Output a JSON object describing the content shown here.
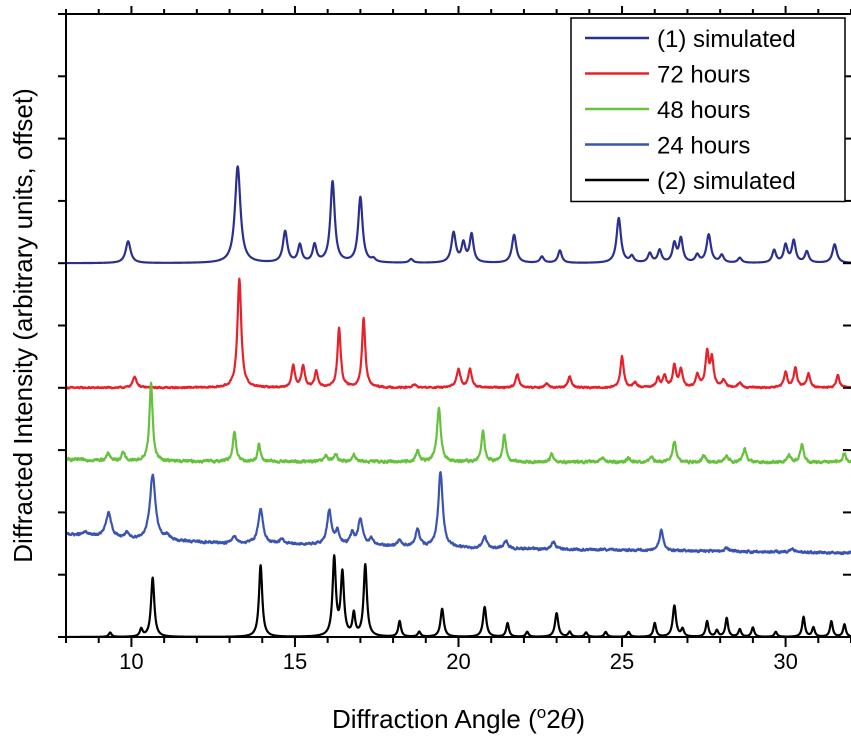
{
  "chart_data": {
    "type": "line",
    "xlabel": "Diffraction Angle (°2θ)",
    "xlabel_parts": {
      "prefix": "Diffraction Angle (",
      "superscript": "o",
      "middle": "2",
      "theta": "θ",
      "suffix": ")"
    },
    "ylabel": "Diffracted Intensity (arbitrary units, offset)",
    "xlim": [
      8,
      32
    ],
    "ylim": [
      0,
      10
    ],
    "x_ticks": [
      10,
      15,
      20,
      25,
      30
    ],
    "y_ticks": [
      0,
      1,
      2,
      3,
      4,
      5,
      6,
      7,
      8,
      9,
      10
    ],
    "show_y_tick_labels": false,
    "grid": false,
    "legend_position": "top-right",
    "series": [
      {
        "name": "(1) simulated",
        "color": "#2b2f8f",
        "offset": 6.0,
        "noise": 0.0,
        "background": [
          [
            8,
            0
          ],
          [
            32,
            0
          ]
        ],
        "peaks": [
          [
            9.9,
            0.35,
            0.09
          ],
          [
            13.25,
            1.55,
            0.1
          ],
          [
            14.7,
            0.5,
            0.08
          ],
          [
            15.15,
            0.28,
            0.07
          ],
          [
            15.6,
            0.28,
            0.07
          ],
          [
            16.15,
            1.3,
            0.08
          ],
          [
            17.0,
            1.05,
            0.08
          ],
          [
            17.4,
            0.05,
            0.07
          ],
          [
            18.55,
            0.06,
            0.07
          ],
          [
            19.85,
            0.48,
            0.08
          ],
          [
            20.15,
            0.3,
            0.07
          ],
          [
            20.4,
            0.45,
            0.07
          ],
          [
            21.7,
            0.45,
            0.08
          ],
          [
            22.55,
            0.1,
            0.07
          ],
          [
            23.1,
            0.2,
            0.07
          ],
          [
            24.9,
            0.72,
            0.08
          ],
          [
            25.3,
            0.1,
            0.07
          ],
          [
            25.85,
            0.15,
            0.07
          ],
          [
            26.15,
            0.2,
            0.07
          ],
          [
            26.6,
            0.3,
            0.07
          ],
          [
            26.8,
            0.38,
            0.07
          ],
          [
            27.3,
            0.12,
            0.07
          ],
          [
            27.65,
            0.45,
            0.08
          ],
          [
            28.05,
            0.12,
            0.07
          ],
          [
            28.6,
            0.08,
            0.07
          ],
          [
            29.65,
            0.2,
            0.07
          ],
          [
            30.0,
            0.28,
            0.07
          ],
          [
            30.25,
            0.35,
            0.07
          ],
          [
            30.65,
            0.18,
            0.07
          ],
          [
            31.5,
            0.3,
            0.08
          ]
        ]
      },
      {
        "name": "72 hours",
        "color": "#e8202a",
        "offset": 4.0,
        "noise": 0.02,
        "background": [
          [
            8,
            0
          ],
          [
            32,
            0
          ]
        ],
        "peaks": [
          [
            10.1,
            0.18,
            0.07
          ],
          [
            13.3,
            1.75,
            0.07
          ],
          [
            14.95,
            0.35,
            0.06
          ],
          [
            15.25,
            0.35,
            0.06
          ],
          [
            15.65,
            0.25,
            0.06
          ],
          [
            16.35,
            0.95,
            0.06
          ],
          [
            17.1,
            1.1,
            0.06
          ],
          [
            18.65,
            0.05,
            0.06
          ],
          [
            20.0,
            0.3,
            0.07
          ],
          [
            20.35,
            0.3,
            0.06
          ],
          [
            21.8,
            0.22,
            0.06
          ],
          [
            22.7,
            0.07,
            0.06
          ],
          [
            23.4,
            0.18,
            0.06
          ],
          [
            25.0,
            0.5,
            0.06
          ],
          [
            25.4,
            0.08,
            0.06
          ],
          [
            26.1,
            0.15,
            0.06
          ],
          [
            26.3,
            0.18,
            0.06
          ],
          [
            26.6,
            0.35,
            0.06
          ],
          [
            26.8,
            0.28,
            0.06
          ],
          [
            27.3,
            0.2,
            0.06
          ],
          [
            27.6,
            0.55,
            0.06
          ],
          [
            27.75,
            0.45,
            0.06
          ],
          [
            28.1,
            0.12,
            0.06
          ],
          [
            28.6,
            0.08,
            0.06
          ],
          [
            30.0,
            0.25,
            0.06
          ],
          [
            30.3,
            0.32,
            0.06
          ],
          [
            30.7,
            0.22,
            0.06
          ],
          [
            31.6,
            0.2,
            0.06
          ]
        ]
      },
      {
        "name": "48 hours",
        "color": "#66c23c",
        "offset": 2.8,
        "noise": 0.035,
        "background": [
          [
            8,
            0.05
          ],
          [
            10,
            0.02
          ],
          [
            32,
            0.0
          ]
        ],
        "peaks": [
          [
            9.3,
            0.12,
            0.06
          ],
          [
            9.75,
            0.15,
            0.06
          ],
          [
            10.6,
            1.25,
            0.06
          ],
          [
            13.15,
            0.48,
            0.06
          ],
          [
            13.9,
            0.28,
            0.05
          ],
          [
            15.95,
            0.1,
            0.06
          ],
          [
            16.25,
            0.12,
            0.06
          ],
          [
            16.8,
            0.12,
            0.06
          ],
          [
            18.75,
            0.18,
            0.06
          ],
          [
            19.4,
            0.85,
            0.07
          ],
          [
            20.75,
            0.48,
            0.06
          ],
          [
            21.4,
            0.42,
            0.06
          ],
          [
            22.85,
            0.12,
            0.06
          ],
          [
            24.4,
            0.08,
            0.06
          ],
          [
            25.2,
            0.07,
            0.06
          ],
          [
            25.9,
            0.08,
            0.06
          ],
          [
            26.6,
            0.35,
            0.06
          ],
          [
            27.5,
            0.12,
            0.06
          ],
          [
            28.2,
            0.12,
            0.06
          ],
          [
            28.75,
            0.22,
            0.06
          ],
          [
            30.1,
            0.12,
            0.06
          ],
          [
            30.5,
            0.3,
            0.06
          ],
          [
            31.8,
            0.15,
            0.06
          ]
        ]
      },
      {
        "name": "24 hours",
        "color": "#3a54b0",
        "offset": 1.35,
        "noise": 0.03,
        "background": [
          [
            8,
            0.3
          ],
          [
            10,
            0.22
          ],
          [
            13,
            0.15
          ],
          [
            17,
            0.12
          ],
          [
            21,
            0.07
          ],
          [
            32,
            0.0
          ]
        ],
        "peaks": [
          [
            8.6,
            0.05,
            0.1
          ],
          [
            9.3,
            0.38,
            0.1
          ],
          [
            9.85,
            0.08,
            0.07
          ],
          [
            10.65,
            1.05,
            0.1
          ],
          [
            11.1,
            0.08,
            0.07
          ],
          [
            13.15,
            0.12,
            0.08
          ],
          [
            13.95,
            0.55,
            0.09
          ],
          [
            14.6,
            0.08,
            0.07
          ],
          [
            16.05,
            0.55,
            0.08
          ],
          [
            16.3,
            0.2,
            0.07
          ],
          [
            16.75,
            0.18,
            0.07
          ],
          [
            17.0,
            0.42,
            0.08
          ],
          [
            17.35,
            0.1,
            0.07
          ],
          [
            18.2,
            0.1,
            0.07
          ],
          [
            18.75,
            0.28,
            0.07
          ],
          [
            19.45,
            1.2,
            0.08
          ],
          [
            20.8,
            0.2,
            0.07
          ],
          [
            21.45,
            0.12,
            0.07
          ],
          [
            22.9,
            0.12,
            0.07
          ],
          [
            26.2,
            0.32,
            0.07
          ],
          [
            28.2,
            0.06,
            0.07
          ],
          [
            30.2,
            0.06,
            0.07
          ]
        ]
      },
      {
        "name": "(2) simulated",
        "color": "#000000",
        "offset": 0.0,
        "noise": 0.0,
        "background": [
          [
            8,
            0
          ],
          [
            32,
            0
          ]
        ],
        "peaks": [
          [
            9.35,
            0.07,
            0.05
          ],
          [
            10.3,
            0.12,
            0.05
          ],
          [
            10.65,
            0.95,
            0.06
          ],
          [
            13.95,
            1.15,
            0.06
          ],
          [
            16.2,
            1.25,
            0.06
          ],
          [
            16.45,
            1.0,
            0.06
          ],
          [
            16.8,
            0.35,
            0.05
          ],
          [
            17.15,
            1.15,
            0.06
          ],
          [
            18.2,
            0.25,
            0.05
          ],
          [
            18.8,
            0.08,
            0.05
          ],
          [
            19.5,
            0.45,
            0.06
          ],
          [
            20.8,
            0.48,
            0.06
          ],
          [
            21.5,
            0.22,
            0.05
          ],
          [
            22.1,
            0.08,
            0.05
          ],
          [
            23.0,
            0.38,
            0.06
          ],
          [
            23.4,
            0.08,
            0.05
          ],
          [
            23.9,
            0.07,
            0.05
          ],
          [
            24.5,
            0.08,
            0.05
          ],
          [
            25.2,
            0.08,
            0.05
          ],
          [
            26.0,
            0.22,
            0.05
          ],
          [
            26.6,
            0.5,
            0.06
          ],
          [
            26.85,
            0.12,
            0.05
          ],
          [
            27.6,
            0.25,
            0.05
          ],
          [
            27.9,
            0.1,
            0.05
          ],
          [
            28.2,
            0.3,
            0.05
          ],
          [
            28.6,
            0.12,
            0.05
          ],
          [
            29.0,
            0.15,
            0.05
          ],
          [
            29.7,
            0.08,
            0.05
          ],
          [
            30.55,
            0.32,
            0.05
          ],
          [
            30.85,
            0.15,
            0.05
          ],
          [
            31.4,
            0.25,
            0.05
          ],
          [
            31.8,
            0.2,
            0.05
          ]
        ]
      }
    ],
    "legend_order": [
      0,
      1,
      2,
      3,
      4
    ]
  }
}
